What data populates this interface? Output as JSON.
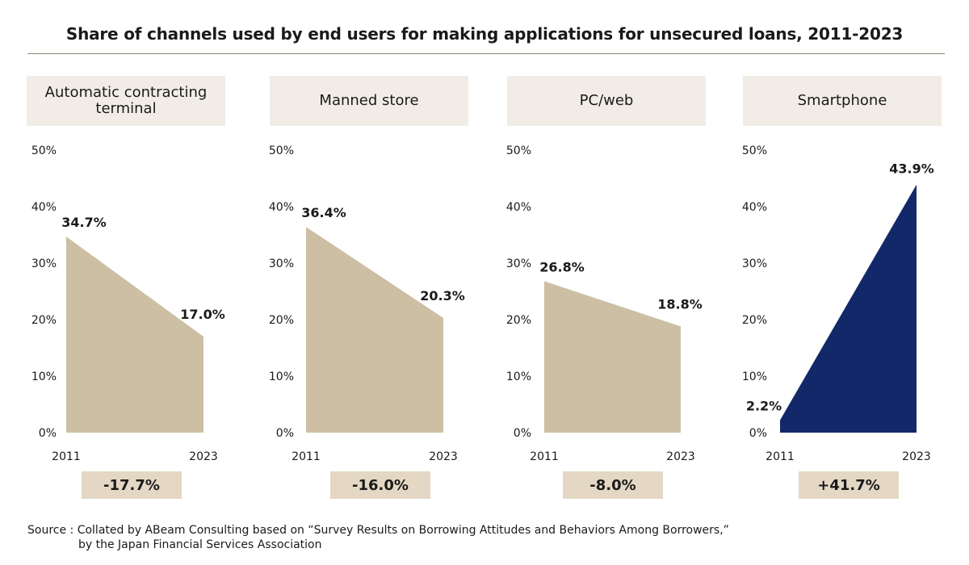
{
  "title": "Share of channels used by end users for making applications for unsecured loans, 2011-2023",
  "source": {
    "line1": "Source : Collated by ABeam Consulting based on “Survey Results on Borrowing Attitudes and Behaviors Among Borrowers,”",
    "line2": "by the Japan Financial Services Association"
  },
  "colors": {
    "declining": "#cdbfa3",
    "rising": "#132868",
    "header_bg": "#f1ede6",
    "change_bg": "#e4d8c4"
  },
  "chart_data": [
    {
      "type": "area",
      "title": "Automatic contracting terminal",
      "x": [
        "2011",
        "2023"
      ],
      "values": [
        34.7,
        17.0
      ],
      "value_labels": [
        "34.7%",
        "17.0%"
      ],
      "change_label": "-17.7%",
      "ylim": [
        0,
        50
      ],
      "yticks": [
        "0%",
        "10%",
        "20%",
        "30%",
        "40%",
        "50%"
      ],
      "color": "#cdbfa3"
    },
    {
      "type": "area",
      "title": "Manned store",
      "x": [
        "2011",
        "2023"
      ],
      "values": [
        36.4,
        20.3
      ],
      "value_labels": [
        "36.4%",
        "20.3%"
      ],
      "change_label": "-16.0%",
      "ylim": [
        0,
        50
      ],
      "yticks": [
        "0%",
        "10%",
        "20%",
        "30%",
        "40%",
        "50%"
      ],
      "color": "#cdbfa3"
    },
    {
      "type": "area",
      "title": "PC/web",
      "x": [
        "2011",
        "2023"
      ],
      "values": [
        26.8,
        18.8
      ],
      "value_labels": [
        "26.8%",
        "18.8%"
      ],
      "change_label": "-8.0%",
      "ylim": [
        0,
        50
      ],
      "yticks": [
        "0%",
        "10%",
        "20%",
        "30%",
        "40%",
        "50%"
      ],
      "color": "#cdbfa3"
    },
    {
      "type": "area",
      "title": "Smartphone",
      "x": [
        "2011",
        "2023"
      ],
      "values": [
        2.2,
        43.9
      ],
      "value_labels": [
        "2.2%",
        "43.9%"
      ],
      "change_label": "+41.7%",
      "ylim": [
        0,
        50
      ],
      "yticks": [
        "0%",
        "10%",
        "20%",
        "30%",
        "40%",
        "50%"
      ],
      "color": "#132868"
    }
  ]
}
